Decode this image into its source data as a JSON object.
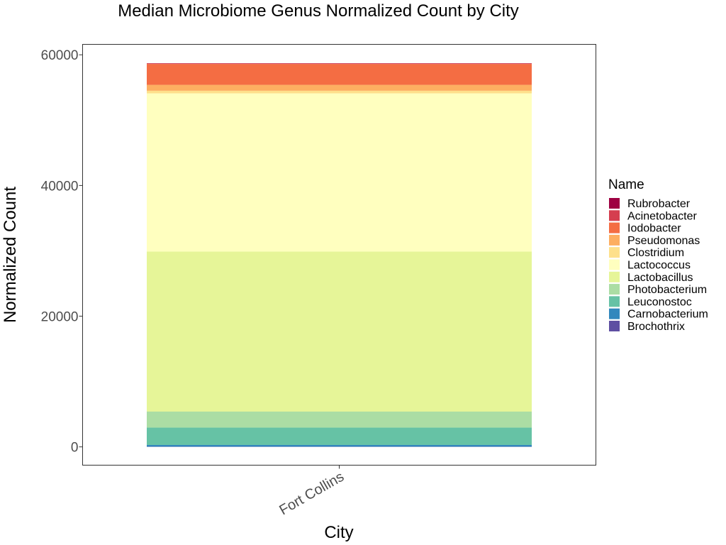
{
  "chart_data": {
    "type": "bar",
    "stacked": true,
    "title": "Median Microbiome Genus Normalized Count by City",
    "xlabel": "City",
    "ylabel": "Normalized Count",
    "categories": [
      "Fort Collins"
    ],
    "ylim": [
      -2800,
      61600
    ],
    "yticks": [
      0,
      20000,
      40000,
      60000
    ],
    "grid": false,
    "legend": {
      "title": "Name",
      "placement": "right"
    },
    "series": [
      {
        "name": "Brochothrix",
        "color": "#5E4FA2",
        "values": [
          30
        ]
      },
      {
        "name": "Carnobacterium",
        "color": "#3288BD",
        "values": [
          270
        ]
      },
      {
        "name": "Leuconostoc",
        "color": "#66C2A5",
        "values": [
          2650
        ]
      },
      {
        "name": "Photobacterium",
        "color": "#ABDDA4",
        "values": [
          2450
        ]
      },
      {
        "name": "Lactobacillus",
        "color": "#E6F598",
        "values": [
          24500
        ]
      },
      {
        "name": "Lactococcus",
        "color": "#FFFFBF",
        "values": [
          24200
        ]
      },
      {
        "name": "Clostridium",
        "color": "#FEE08B",
        "values": [
          400
        ]
      },
      {
        "name": "Pseudomonas",
        "color": "#FDAE61",
        "values": [
          900
        ]
      },
      {
        "name": "Iodobacter",
        "color": "#F46D43",
        "values": [
          3200
        ]
      },
      {
        "name": "Acinetobacter",
        "color": "#D53E4F",
        "values": [
          100
        ]
      },
      {
        "name": "Rubrobacter",
        "color": "#9E0142",
        "values": [
          20
        ]
      }
    ]
  }
}
